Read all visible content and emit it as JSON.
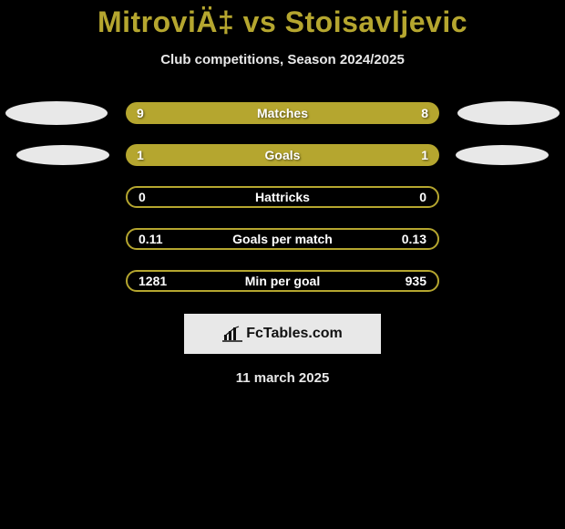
{
  "title": "MitroviÄ‡ vs Stoisavljevic",
  "subtitle": "Club competitions, Season 2024/2025",
  "rows": [
    {
      "left": "9",
      "label": "Matches",
      "right": "8",
      "filled": true,
      "ellipse_left": true,
      "ellipse_right": true,
      "ellipse_size": "big"
    },
    {
      "left": "1",
      "label": "Goals",
      "right": "1",
      "filled": true,
      "ellipse_left": true,
      "ellipse_right": true,
      "ellipse_size": "small"
    },
    {
      "left": "0",
      "label": "Hattricks",
      "right": "0",
      "filled": false,
      "ellipse_left": false,
      "ellipse_right": false,
      "ellipse_size": ""
    },
    {
      "left": "0.11",
      "label": "Goals per match",
      "right": "0.13",
      "filled": false,
      "ellipse_left": false,
      "ellipse_right": false,
      "ellipse_size": ""
    },
    {
      "left": "1281",
      "label": "Min per goal",
      "right": "935",
      "filled": false,
      "ellipse_left": false,
      "ellipse_right": false,
      "ellipse_size": ""
    }
  ],
  "logo_text": "FcTables.com",
  "date_text": "11 march 2025",
  "colors": {
    "accent": "#b5a62f",
    "background": "#000000",
    "text_light": "#e8e8e8",
    "ellipse": "#e8e8e8"
  },
  "typography": {
    "title_fontsize": 32,
    "subtitle_fontsize": 15,
    "stat_fontsize": 14
  }
}
